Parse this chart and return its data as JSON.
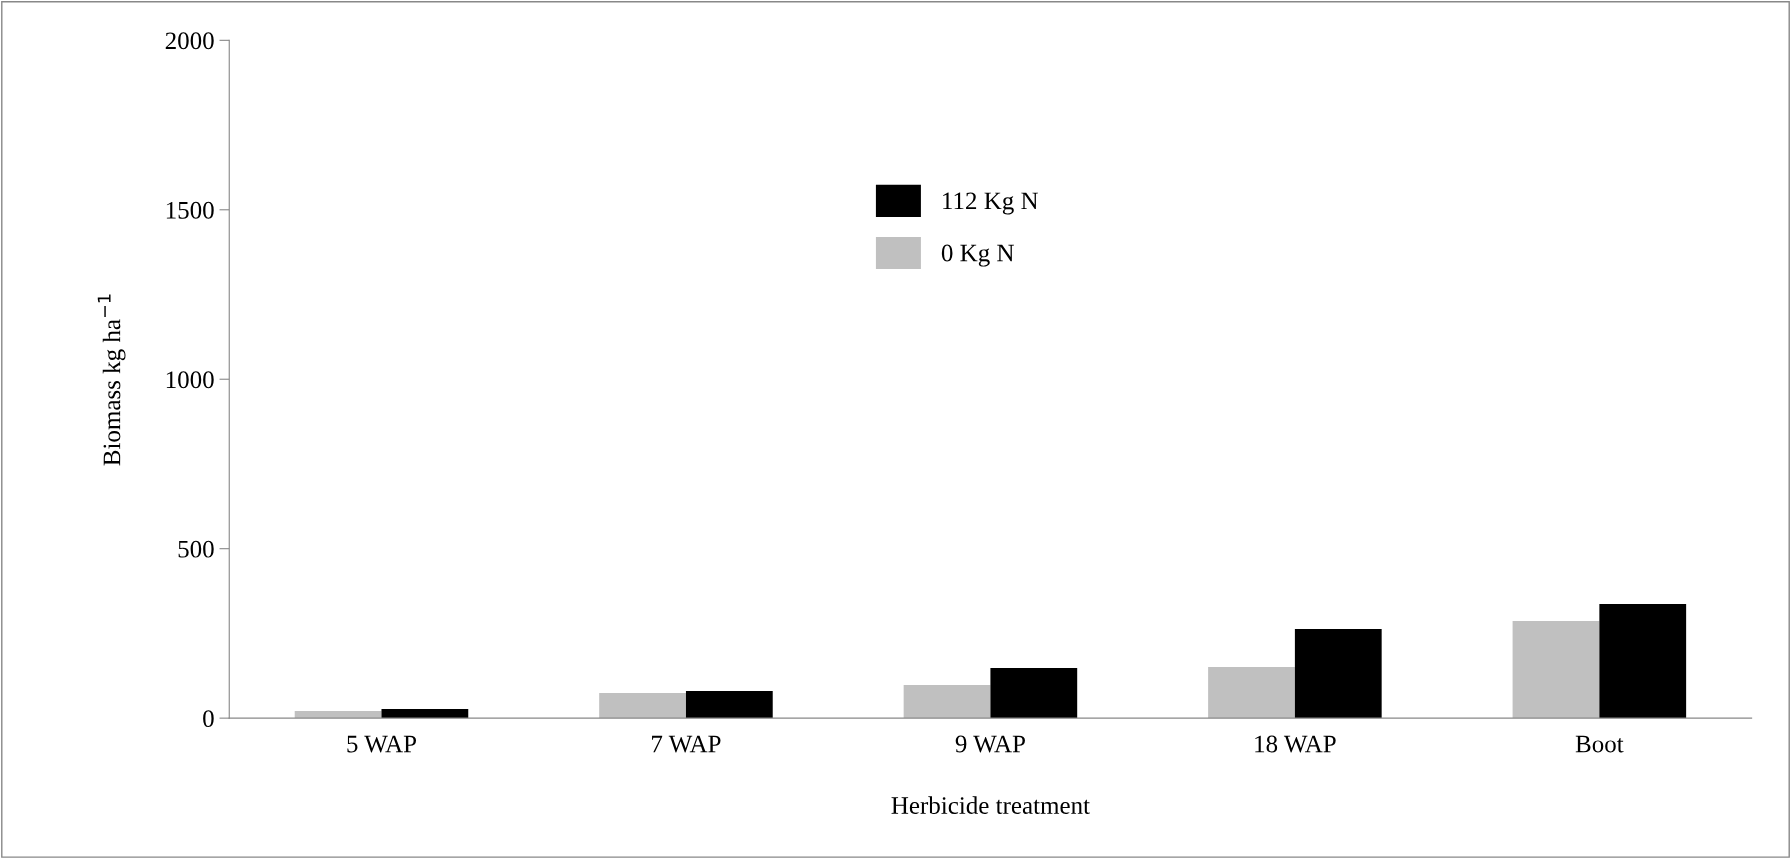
{
  "chart_data": {
    "type": "bar",
    "xlabel": "Herbicide treatment",
    "ylabel": "Biomass kg ha$^{−1}$",
    "categories": [
      "5 WAP",
      "7 WAP",
      "9 WAP",
      "18 WAP",
      "Boot"
    ],
    "series": [
      {
        "name": "0 Kg N",
        "color": "#c0c0c0",
        "values": [
          21,
          74,
          98,
          151,
          287
        ]
      },
      {
        "name": "112 Kg N",
        "color": "#000000",
        "values": [
          27,
          80,
          148,
          263,
          337
        ]
      }
    ],
    "ylim": [
      0,
      2000
    ],
    "yticks": [
      0,
      500,
      1000,
      1500,
      2000
    ],
    "grid": false,
    "legend": "top center"
  }
}
